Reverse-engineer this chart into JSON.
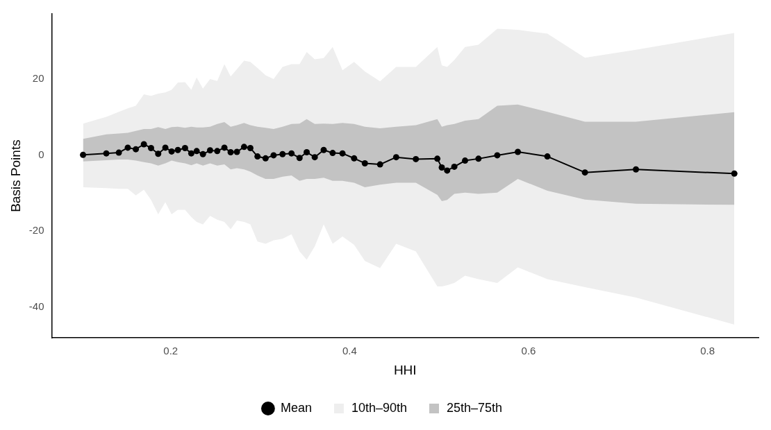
{
  "chart_data": {
    "type": "line",
    "xlabel": "HHI",
    "ylabel": "Basis Points",
    "x": [
      0.102,
      0.128,
      0.142,
      0.152,
      0.161,
      0.17,
      0.178,
      0.186,
      0.194,
      0.201,
      0.208,
      0.216,
      0.223,
      0.229,
      0.236,
      0.244,
      0.252,
      0.26,
      0.267,
      0.274,
      0.282,
      0.289,
      0.297,
      0.306,
      0.315,
      0.325,
      0.335,
      0.344,
      0.352,
      0.361,
      0.371,
      0.381,
      0.392,
      0.405,
      0.417,
      0.434,
      0.452,
      0.474,
      0.498,
      0.503,
      0.509,
      0.517,
      0.529,
      0.544,
      0.565,
      0.588,
      0.621,
      0.663,
      0.72,
      0.83
    ],
    "series": [
      {
        "name": "Mean",
        "color": "#000000",
        "marker": "circle",
        "values": [
          0,
          0.4,
          0.6,
          1.9,
          1.5,
          2.8,
          1.8,
          0.3,
          1.9,
          0.9,
          1.3,
          1.8,
          0.4,
          1.0,
          0.2,
          1.2,
          1.0,
          1.9,
          0.7,
          0.8,
          2.1,
          1.8,
          -0.4,
          -0.9,
          -0.1,
          0.2,
          0.4,
          -0.8,
          0.7,
          -0.6,
          1.3,
          0.5,
          0.4,
          -0.9,
          -2.2,
          -2.5,
          -0.6,
          -1.1,
          -1.0,
          -3.3,
          -4.1,
          -3.1,
          -1.5,
          -1.0,
          -0.1,
          0.8,
          -0.4,
          -4.6,
          -3.8,
          -4.9
        ]
      },
      {
        "name": "10th–90th",
        "color": "#eeeeee",
        "values": [
          null,
          null,
          null,
          null,
          null,
          null,
          null,
          null,
          null,
          null,
          null,
          null,
          null,
          null,
          null,
          null,
          null,
          null,
          null,
          null,
          null,
          null,
          null,
          null,
          null,
          null,
          null,
          null,
          null,
          null,
          null,
          null,
          null,
          null,
          null,
          null,
          null,
          null,
          null,
          null,
          null,
          null,
          null,
          null,
          null,
          null,
          null,
          null,
          null,
          null
        ],
        "upper": [
          8.2,
          10.0,
          11.3,
          12.2,
          12.9,
          15.9,
          15.5,
          16.1,
          16.4,
          17.1,
          19.0,
          19.1,
          17.1,
          20.3,
          17.4,
          19.9,
          19.4,
          23.8,
          20.6,
          22.5,
          24.7,
          24.4,
          22.8,
          20.9,
          19.9,
          23.1,
          23.8,
          23.8,
          27.0,
          25.1,
          25.4,
          28.3,
          22.2,
          24.4,
          21.9,
          19.3,
          23.1,
          23.1,
          28.3,
          23.5,
          23.1,
          24.9,
          28.3,
          28.9,
          33.1,
          32.8,
          31.8,
          25.5,
          27.6,
          32.0
        ],
        "lower": [
          -8.5,
          -8.7,
          -8.9,
          -8.9,
          -10.6,
          -9.1,
          -11.8,
          -15.6,
          -12.4,
          -15.6,
          -14.4,
          -14.4,
          -16.3,
          -17.6,
          -18.2,
          -16.0,
          -17.0,
          -17.6,
          -19.5,
          -17.2,
          -17.6,
          -18.2,
          -22.7,
          -23.3,
          -22.4,
          -22.0,
          -20.8,
          -25.3,
          -27.5,
          -24.0,
          -18.2,
          -23.3,
          -21.4,
          -23.6,
          -27.8,
          -29.7,
          -23.3,
          -25.3,
          -34.5,
          -34.5,
          -34.2,
          -33.6,
          -31.7,
          -32.6,
          -33.6,
          -29.5,
          -32.6,
          -34.7,
          -37.4,
          -44.5
        ]
      },
      {
        "name": "25th–75th",
        "color": "#c3c3c3",
        "values": [
          null,
          null,
          null,
          null,
          null,
          null,
          null,
          null,
          null,
          null,
          null,
          null,
          null,
          null,
          null,
          null,
          null,
          null,
          null,
          null,
          null,
          null,
          null,
          null,
          null,
          null,
          null,
          null,
          null,
          null,
          null,
          null,
          null,
          null,
          null,
          null,
          null,
          null,
          null,
          null,
          null,
          null,
          null,
          null,
          null,
          null,
          null,
          null,
          null,
          null
        ],
        "upper": [
          4.2,
          5.4,
          5.6,
          5.8,
          6.3,
          6.8,
          6.8,
          7.3,
          6.8,
          7.3,
          7.4,
          7.1,
          7.4,
          7.2,
          7.2,
          7.4,
          8.1,
          8.6,
          7.4,
          7.8,
          8.4,
          7.8,
          7.4,
          7.1,
          6.8,
          7.4,
          8.1,
          8.2,
          9.4,
          8.1,
          8.2,
          8.1,
          8.4,
          8.1,
          7.4,
          7.0,
          7.4,
          7.8,
          9.4,
          7.4,
          7.8,
          8.1,
          9.0,
          9.4,
          12.9,
          13.2,
          11.3,
          8.7,
          8.7,
          11.2
        ],
        "lower": [
          -1.7,
          -1.4,
          -1.2,
          -1.2,
          -1.5,
          -1.9,
          -2.2,
          -2.8,
          -2.2,
          -1.5,
          -1.9,
          -2.2,
          -2.7,
          -2.2,
          -2.8,
          -2.2,
          -2.8,
          -2.5,
          -3.8,
          -3.5,
          -3.8,
          -4.4,
          -5.4,
          -6.3,
          -6.3,
          -5.7,
          -5.4,
          -6.8,
          -6.3,
          -6.3,
          -6.0,
          -6.8,
          -6.8,
          -7.3,
          -8.5,
          -7.8,
          -7.3,
          -7.3,
          -10.5,
          -12.1,
          -11.8,
          -10.2,
          -9.9,
          -10.2,
          -9.9,
          -6.3,
          -9.4,
          -11.7,
          -12.8,
          -13.1
        ]
      }
    ],
    "xlim": [
      0.067,
      0.857
    ],
    "ylim": [
      -48,
      37
    ],
    "xticks": [
      0.2,
      0.4,
      0.6,
      0.8
    ],
    "yticks": [
      -40,
      -20,
      0,
      20
    ],
    "legend": "bottom",
    "line_style": "solid"
  }
}
